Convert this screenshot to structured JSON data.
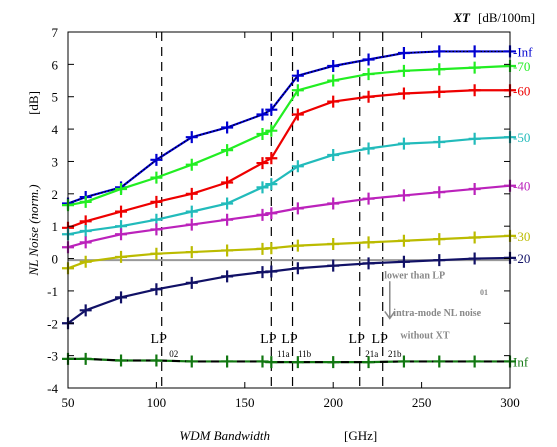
{
  "chart_data": {
    "type": "line",
    "xlabel": "WDM Bandwidth",
    "xunit": "[GHz]",
    "ylabel": "NL Noise (norm.)",
    "yunit": "[dB]",
    "xlim": [
      50,
      300
    ],
    "ylim": [
      -4,
      7
    ],
    "xticks": [
      50,
      100,
      150,
      200,
      250,
      300
    ],
    "yticks": [
      -4,
      -3,
      -2,
      -1,
      0,
      1,
      2,
      3,
      4,
      5,
      6,
      7
    ],
    "legend_title": "XT",
    "legend_unit": "[dB/100m]",
    "x": [
      50,
      60,
      80,
      100,
      120,
      140,
      160,
      165,
      180,
      200,
      220,
      240,
      260,
      280,
      300
    ],
    "series": [
      {
        "name": "-Inf",
        "color": "#0000d0",
        "dotted_overlay": true,
        "values": [
          1.7,
          1.9,
          2.2,
          3.05,
          3.75,
          4.05,
          4.45,
          4.6,
          5.65,
          5.95,
          6.15,
          6.35,
          6.4,
          6.4,
          6.4
        ]
      },
      {
        "name": "-70",
        "color": "#22ee22",
        "values": [
          1.65,
          1.75,
          2.15,
          2.5,
          2.9,
          3.35,
          3.85,
          3.95,
          5.2,
          5.5,
          5.7,
          5.8,
          5.85,
          5.9,
          5.95
        ]
      },
      {
        "name": "-60",
        "color": "#ee0000",
        "values": [
          0.95,
          1.15,
          1.45,
          1.75,
          2.0,
          2.35,
          2.95,
          3.1,
          4.45,
          4.85,
          5.0,
          5.1,
          5.15,
          5.2,
          5.2
        ]
      },
      {
        "name": "-50",
        "color": "#22bbbb",
        "values": [
          0.75,
          0.85,
          1.0,
          1.2,
          1.45,
          1.7,
          2.2,
          2.3,
          2.85,
          3.2,
          3.4,
          3.55,
          3.6,
          3.7,
          3.75
        ]
      },
      {
        "name": "-40",
        "color": "#bb22bb",
        "values": [
          0.35,
          0.5,
          0.75,
          0.9,
          1.05,
          1.2,
          1.35,
          1.4,
          1.55,
          1.7,
          1.85,
          1.95,
          2.05,
          2.15,
          2.25
        ]
      },
      {
        "name": "-30",
        "color": "#bbbb00",
        "values": [
          -0.3,
          -0.1,
          0.05,
          0.15,
          0.2,
          0.25,
          0.3,
          0.32,
          0.4,
          0.45,
          0.5,
          0.55,
          0.6,
          0.65,
          0.7
        ]
      },
      {
        "name": "-20",
        "color": "#111166",
        "values": [
          -2.0,
          -1.6,
          -1.2,
          -0.95,
          -0.75,
          -0.55,
          -0.42,
          -0.4,
          -0.3,
          -0.22,
          -0.15,
          -0.1,
          -0.05,
          0.0,
          0.02
        ]
      },
      {
        "name": "Inf",
        "color": "#117711",
        "dashed_overlay": true,
        "values": [
          -3.1,
          -3.1,
          -3.15,
          -3.15,
          -3.18,
          -3.18,
          -3.18,
          -3.2,
          -3.2,
          -3.2,
          -3.2,
          -3.18,
          -3.18,
          -3.18,
          -3.18
        ]
      }
    ],
    "reference_line": {
      "y": -0.05,
      "color": "#999999"
    },
    "vlines": [
      {
        "x": 103,
        "label": "LP",
        "sub": "02"
      },
      {
        "x": 165,
        "label": "LP",
        "sub": "11a"
      },
      {
        "x": 177,
        "label": "LP",
        "sub": "11b"
      },
      {
        "x": 215,
        "label": "LP",
        "sub": "21a"
      },
      {
        "x": 228,
        "label": "LP",
        "sub": "21b"
      }
    ],
    "annotation": {
      "lines": [
        "lower than LP",
        "intra-mode NL noise",
        "without XT"
      ],
      "sub": "01",
      "color": "#888888"
    }
  }
}
